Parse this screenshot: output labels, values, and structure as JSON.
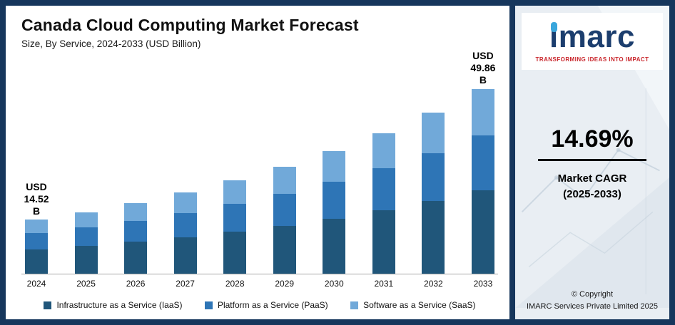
{
  "chart_data": {
    "type": "bar",
    "stacked": true,
    "title": "Canada Cloud Computing Market Forecast",
    "subtitle": "Size, By Service, 2024-2033 (USD Billion)",
    "categories": [
      "2024",
      "2025",
      "2026",
      "2027",
      "2028",
      "2029",
      "2030",
      "2031",
      "2032",
      "2033"
    ],
    "series": [
      {
        "name": "Infrastructure as a Service (IaaS)",
        "short": "iaas",
        "color": "#20567a",
        "values": [
          6.53,
          7.49,
          8.6,
          9.86,
          11.3,
          12.96,
          14.87,
          17.06,
          19.56,
          22.44
        ]
      },
      {
        "name": "Platform as a Service (PaaS)",
        "short": "paas",
        "color": "#2e75b6",
        "values": [
          4.36,
          5.0,
          5.73,
          6.57,
          7.54,
          8.64,
          9.91,
          11.37,
          13.04,
          14.95
        ]
      },
      {
        "name": "Software as a Service (SaaS)",
        "short": "saas",
        "color": "#71a9d9",
        "values": [
          3.63,
          4.16,
          4.78,
          5.48,
          6.28,
          7.2,
          8.26,
          9.48,
          10.87,
          12.47
        ]
      }
    ],
    "totals": [
      14.52,
      16.65,
      19.11,
      21.91,
      25.12,
      28.8,
      33.04,
      37.91,
      43.47,
      49.86
    ],
    "annotations": [
      {
        "index": 0,
        "text": "USD\n14.52 B"
      },
      {
        "index": 9,
        "text": "USD\n49.86 B"
      }
    ],
    "ylim": [
      0,
      55
    ],
    "grid": false,
    "legend_position": "bottom"
  },
  "sidebar": {
    "brand": "imarc",
    "tagline": "TRANSFORMING IDEAS INTO IMPACT",
    "cagr_value": "14.69%",
    "cagr_label_line1": "Market CAGR",
    "cagr_label_line2": "(2025-2033)",
    "copyright_line1": "© Copyright",
    "copyright_line2": "IMARC Services Private Limited 2025"
  }
}
